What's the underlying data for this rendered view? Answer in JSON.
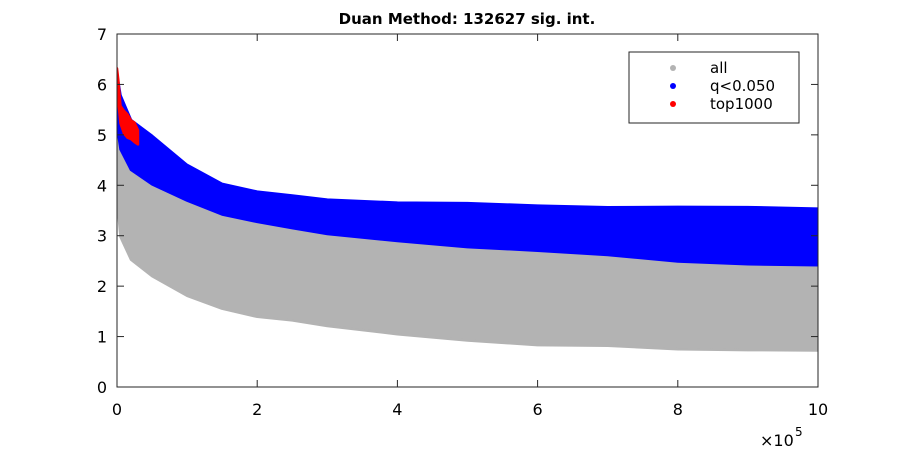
{
  "chart_data": {
    "type": "scatter",
    "title": "Duan Method: 132627 sig. int.",
    "xlabel": "",
    "ylabel": "",
    "xlim": [
      0,
      1000000
    ],
    "ylim": [
      0,
      7
    ],
    "x_ticks": [
      0,
      200000,
      400000,
      600000,
      800000,
      1000000
    ],
    "x_tick_labels": [
      "0",
      "2",
      "4",
      "6",
      "8",
      "10"
    ],
    "x_exponent_label": "×10",
    "x_exponent_power": "5",
    "y_ticks": [
      0,
      1,
      2,
      3,
      4,
      5,
      6,
      7
    ],
    "y_tick_labels": [
      "0",
      "1",
      "2",
      "3",
      "4",
      "5",
      "6",
      "7"
    ],
    "grid": false,
    "legend_position": "top-right",
    "series": [
      {
        "name": "all",
        "color": "#b3b3b3",
        "band": {
          "x": [
            0,
            5000,
            20000,
            50000,
            100000,
            150000,
            200000,
            250000,
            300000,
            400000,
            500000,
            600000,
            700000,
            800000,
            900000,
            1000000
          ],
          "lower": [
            3.7,
            3.0,
            2.5,
            2.2,
            1.8,
            1.55,
            1.4,
            1.3,
            1.2,
            1.05,
            0.95,
            0.85,
            0.8,
            0.78,
            0.75,
            0.72
          ],
          "upper": [
            5.2,
            4.7,
            4.3,
            4.0,
            3.7,
            3.45,
            3.3,
            3.15,
            3.05,
            2.9,
            2.8,
            2.7,
            2.6,
            2.5,
            2.45,
            2.4
          ]
        }
      },
      {
        "name": "q<0.050",
        "color": "#0000ff",
        "band": {
          "x": [
            0,
            5000,
            20000,
            50000,
            100000,
            150000,
            200000,
            250000,
            300000,
            400000,
            500000,
            600000,
            700000,
            800000,
            900000,
            1000000
          ],
          "lower": [
            5.2,
            4.7,
            4.3,
            4.0,
            3.7,
            3.45,
            3.3,
            3.15,
            3.05,
            2.9,
            2.8,
            2.7,
            2.6,
            2.5,
            2.45,
            2.4
          ],
          "upper": [
            6.2,
            5.8,
            5.3,
            5.0,
            4.4,
            4.0,
            3.85,
            3.8,
            3.7,
            3.65,
            3.62,
            3.6,
            3.58,
            3.56,
            3.55,
            3.55
          ]
        }
      },
      {
        "name": "top1000",
        "color": "#ff0000",
        "band": {
          "x": [
            0,
            2000,
            5000,
            10000,
            15000,
            20000,
            25000,
            30000
          ],
          "lower": [
            5.7,
            5.6,
            5.2,
            5.0,
            4.95,
            4.9,
            4.85,
            4.8
          ],
          "upper": [
            6.3,
            6.1,
            5.6,
            5.5,
            5.4,
            5.3,
            5.25,
            5.1
          ]
        }
      }
    ]
  }
}
